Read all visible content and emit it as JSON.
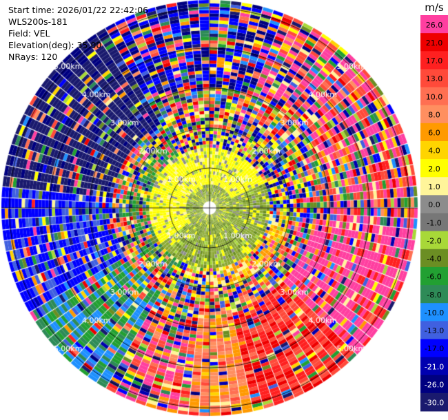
{
  "header": {
    "start_time": "Start time: 2026/01/22 22:42:06",
    "instrument": "WLS200s-181",
    "field": "Field: VEL",
    "elevation": "Elevation(deg): 35.00",
    "nrays": "NRays: 120"
  },
  "chart_data": {
    "type": "heatmap",
    "projection": "polar-ppi",
    "field": "VEL",
    "units": "m/s",
    "range_rings_km": [
      1,
      2,
      3,
      4,
      5
    ],
    "ring_labels": [
      "1.00km",
      "2.00km",
      "3.00km",
      "4.00km",
      "5.00km"
    ],
    "max_range_km": 5.2,
    "n_rays": 120,
    "crosshair_lines": true,
    "colorbar": {
      "title": "m/s",
      "tick_labels": [
        "26.0",
        "21.0",
        "17.0",
        "13.0",
        "10.0",
        "8.0",
        "6.0",
        "4.0",
        "2.0",
        "1.0",
        "0.0",
        "-1.0",
        "-2.0",
        "-4.0",
        "-6.0",
        "-8.0",
        "-10.0",
        "-13.0",
        "-17.0",
        "-21.0",
        "-26.0",
        "-30.0"
      ],
      "colors": [
        "#ff3fa0",
        "#ee0000",
        "#ff2020",
        "#ff4a3a",
        "#ff6f52",
        "#ff8f60",
        "#ff9a00",
        "#ffd400",
        "#ffff00",
        "#fff59a",
        "#8c8c8c",
        "#777777",
        "#a8d838",
        "#6b8e23",
        "#22a032",
        "#2e8b57",
        "#1e90ff",
        "#4060e0",
        "#0000ff",
        "#0000b0",
        "#000080",
        "#1a1a6e"
      ]
    },
    "structure": {
      "near_inbound_color": "#ffff00",
      "near_outbound_color": "#8aa832",
      "far_positive_sector_deg": [
        95,
        185
      ],
      "far_negative_sector_deg": [
        210,
        330
      ]
    }
  }
}
